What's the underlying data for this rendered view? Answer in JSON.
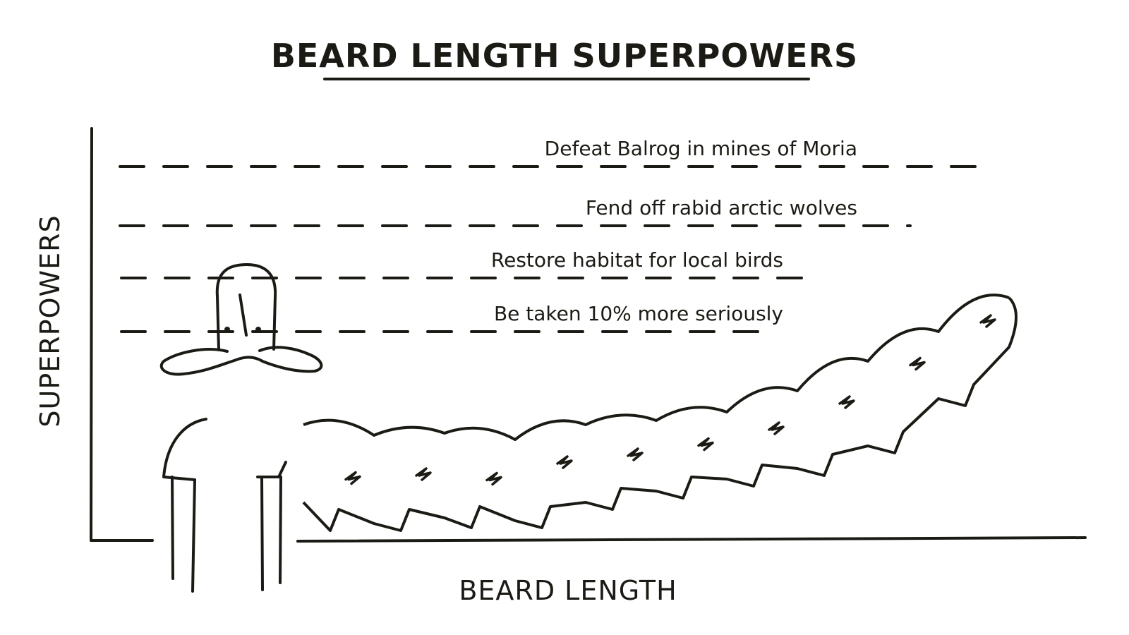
{
  "chart_data": {
    "type": "line",
    "title": "BEARD LENGTH SUPERPOWERS",
    "xlabel": "BEARD LENGTH",
    "ylabel": "SUPERPOWERS",
    "grid": false,
    "levels": [
      {
        "label": "Be taken 10% more seriously",
        "value": 1
      },
      {
        "label": "Restore habitat for local birds",
        "value": 2
      },
      {
        "label": "Fend off rabid arctic wolves",
        "value": 3
      },
      {
        "label": "Defeat Balrog in mines of Moria",
        "value": 4
      }
    ],
    "series": [
      {
        "x": [
          0,
          1,
          2,
          3,
          4,
          5,
          6,
          7,
          8,
          9,
          10
        ],
        "values": [
          0.8,
          0.55,
          0.6,
          0.45,
          0.8,
          0.9,
          1.1,
          1.6,
          2.3,
          3.0,
          3.8
        ]
      }
    ]
  },
  "colors": {
    "ink": "#1c1a14",
    "background": "#ffffff"
  },
  "illustration": {
    "figure": "bearded-man-figure"
  }
}
